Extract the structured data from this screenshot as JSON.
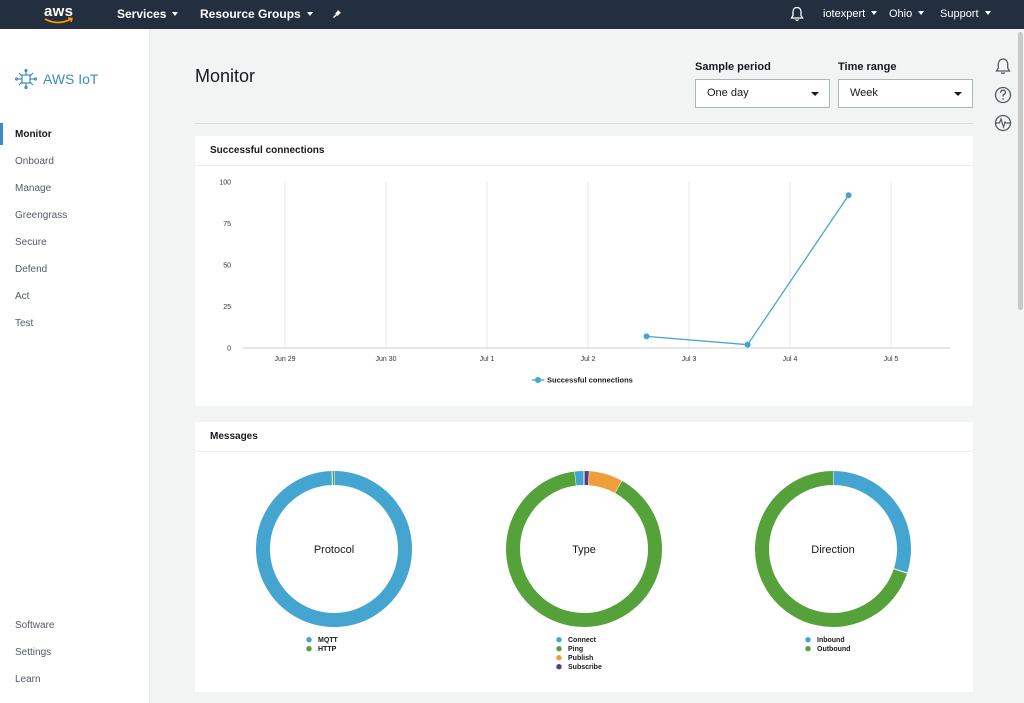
{
  "topnav": {
    "logo": "aws",
    "services": "Services",
    "resource_groups": "Resource Groups",
    "account": "iotexpert",
    "region": "Ohio",
    "support": "Support"
  },
  "sidebar": {
    "brand": "AWS IoT",
    "items": [
      "Monitor",
      "Onboard",
      "Manage",
      "Greengrass",
      "Secure",
      "Defend",
      "Act",
      "Test"
    ],
    "bottom_items": [
      "Software",
      "Settings",
      "Learn"
    ]
  },
  "main": {
    "title": "Monitor",
    "sample_period": {
      "label": "Sample period",
      "value": "One day"
    },
    "time_range": {
      "label": "Time range",
      "value": "Week"
    }
  },
  "connections_panel": {
    "title": "Successful connections"
  },
  "messages_panel": {
    "title": "Messages"
  },
  "colors": {
    "blue": "#45a5d1",
    "green": "#56a23a",
    "orange": "#ef9f39",
    "purple": "#5c3a87",
    "nav": "#232f3e",
    "accent": "#3b8cc4"
  },
  "chart_data": [
    {
      "type": "line",
      "title": "",
      "categories": [
        "Jun 29",
        "Jun 30",
        "Jul 1",
        "Jul 2",
        "Jul 3",
        "Jul 4",
        "Jul 5"
      ],
      "series": [
        {
          "name": "Successful connections",
          "x": [
            3.58,
            4.58,
            5.58
          ],
          "values": [
            7,
            2,
            92
          ]
        }
      ],
      "yticks": [
        0,
        25,
        50,
        75,
        100
      ],
      "ylim": [
        0,
        100
      ],
      "grid": true,
      "legend": "bottom"
    },
    {
      "type": "pie",
      "title": "Protocol",
      "slices": [
        {
          "label": "MQTT",
          "value": 99.6
        },
        {
          "label": "HTTP",
          "value": 0.4
        }
      ],
      "legend": "bottom"
    },
    {
      "type": "pie",
      "title": "Type",
      "slices": [
        {
          "label": "Connect",
          "value": 2
        },
        {
          "label": "Ping",
          "value": 90
        },
        {
          "label": "Publish",
          "value": 7
        },
        {
          "label": "Subscribe",
          "value": 1
        }
      ],
      "legend": "bottom"
    },
    {
      "type": "pie",
      "title": "Direction",
      "slices": [
        {
          "label": "Inbound",
          "value": 30
        },
        {
          "label": "Outbound",
          "value": 70
        }
      ],
      "legend": "bottom"
    }
  ]
}
